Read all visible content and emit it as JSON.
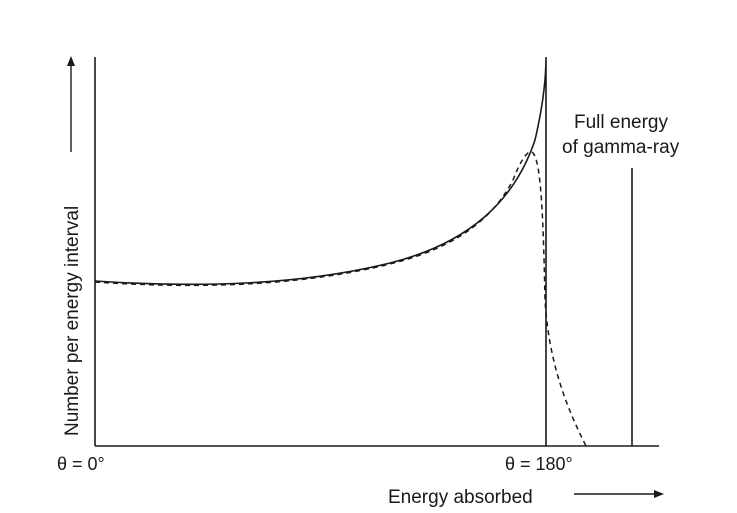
{
  "figure": {
    "y_axis_label": "Number per energy interval",
    "x_axis_label": "Energy absorbed",
    "left_marker": "θ = 0°",
    "edge_marker": "θ = 180°",
    "peak_label_line1": "Full energy",
    "peak_label_line2": "of gamma-ray",
    "line_color": "#1a1a1a"
  },
  "chart_data": {
    "type": "line",
    "title": "",
    "xlabel": "Energy absorbed",
    "ylabel": "Number per energy interval",
    "series": [
      {
        "style": "solid",
        "description_points_x": [
          0,
          0.3,
          0.6,
          0.9,
          1.0
        ],
        "values": [
          0.45,
          0.44,
          0.55,
          0.72,
          1.0
        ]
      },
      {
        "style": "dashed",
        "description_points_x": [
          0,
          0.3,
          0.6,
          0.9,
          0.97,
          1.0,
          1.08
        ],
        "values": [
          0.45,
          0.44,
          0.55,
          0.72,
          0.79,
          0.45,
          0.0
        ]
      }
    ],
    "annotations": [
      "θ = 0°",
      "θ = 180°",
      "Full energy",
      "of gamma-ray"
    ]
  }
}
